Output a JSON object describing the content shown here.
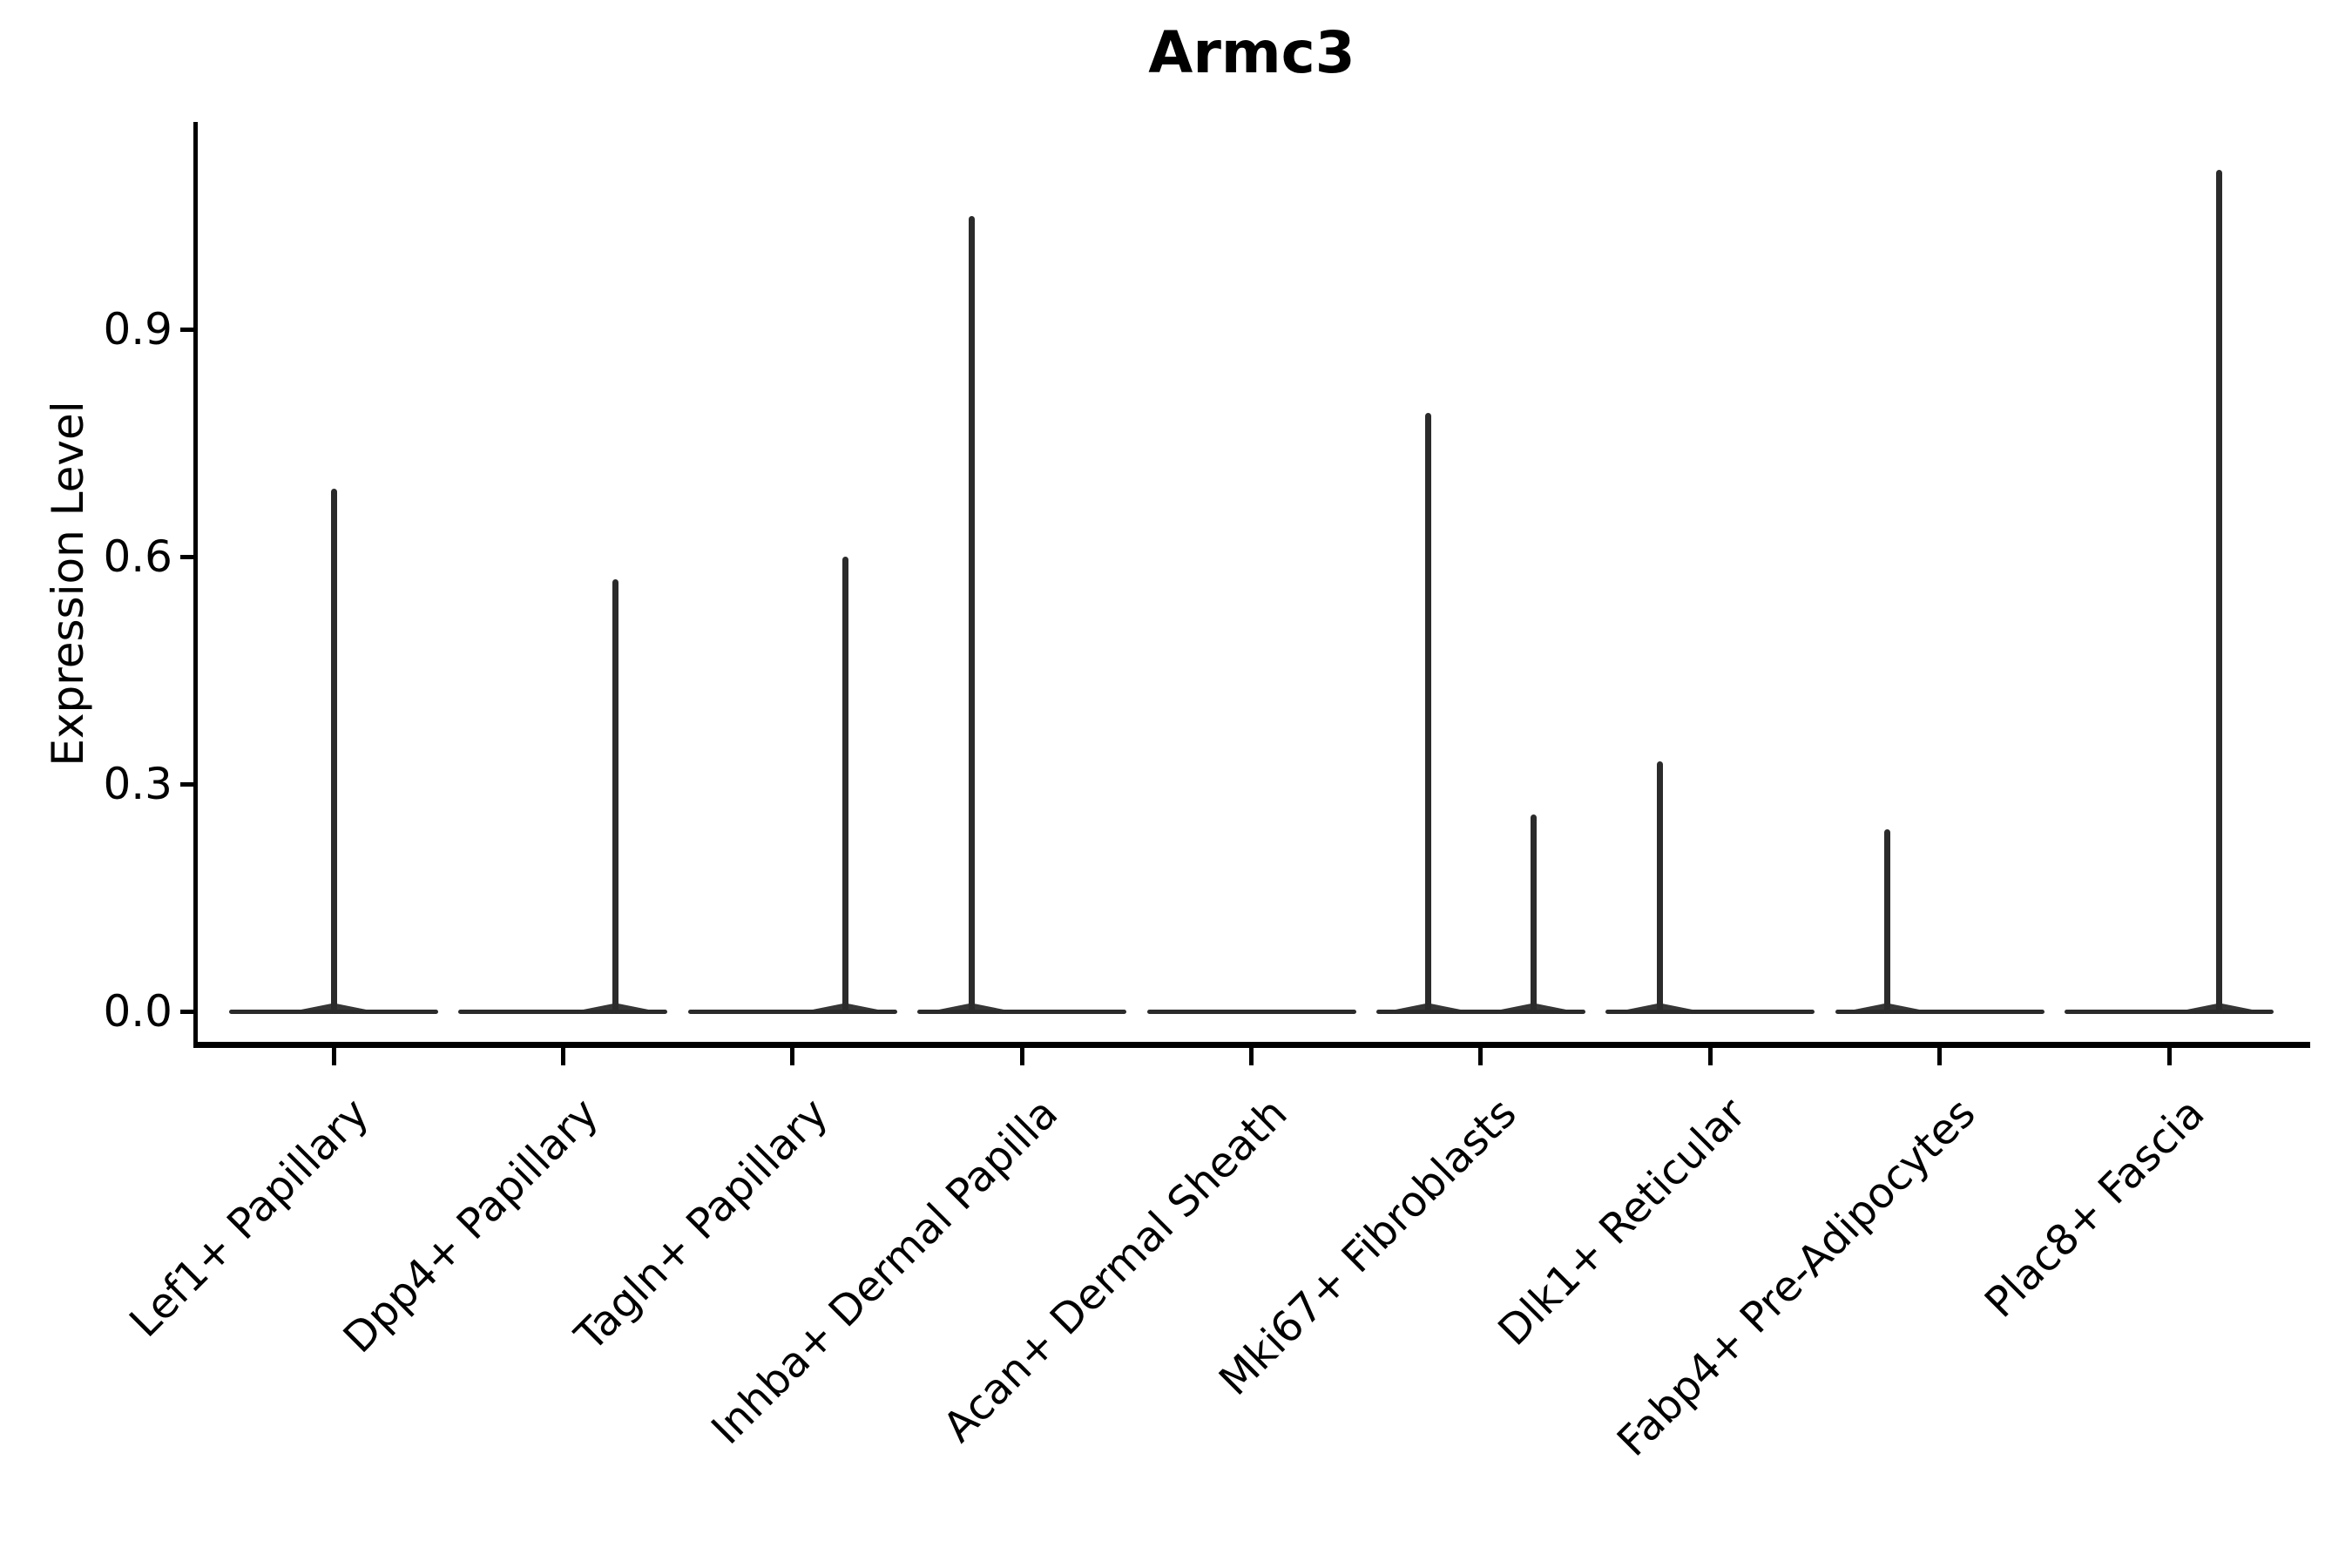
{
  "title": "Armc3",
  "y_axis": {
    "label": "Expression Level"
  },
  "colors": {
    "violin": "#2b2b2b",
    "axis": "#000000",
    "text": "#000000",
    "background": "#ffffff"
  },
  "chart_data": {
    "type": "violin",
    "title": "Armc3",
    "xlabel": "",
    "ylabel": "Expression Level",
    "grid": false,
    "legend": false,
    "ylim": [
      -0.05,
      1.17
    ],
    "yticks": [
      0.0,
      0.3,
      0.6,
      0.9
    ],
    "ytick_labels": [
      "0.0",
      "0.3",
      "0.6",
      "0.9"
    ],
    "categories": [
      "Lef1+ Papillary",
      "Dpp4+ Papillary",
      "Tagln+ Papillary",
      "Inhba+ Dermal Papilla",
      "Acan+ Dermal Sheath",
      "Mki67+ Fibroblasts",
      "Dlk1+ Reticular",
      "Fabp4+ Pre-Adipocytes",
      "Plac8+ Fascia"
    ],
    "series": [
      {
        "name": "Lef1+ Papillary",
        "max_expression": 0.69,
        "spikes": [
          {
            "x_offset_frac": 0.0,
            "value": 0.69
          }
        ]
      },
      {
        "name": "Dpp4+ Papillary",
        "max_expression": 0.57,
        "spikes": [
          {
            "x_offset_frac": 0.23,
            "value": 0.57
          }
        ]
      },
      {
        "name": "Tagln+ Papillary",
        "max_expression": 0.6,
        "spikes": [
          {
            "x_offset_frac": 0.23,
            "value": 0.6
          }
        ]
      },
      {
        "name": "Inhba+ Dermal Papilla",
        "max_expression": 1.05,
        "spikes": [
          {
            "x_offset_frac": -0.22,
            "value": 1.05
          }
        ]
      },
      {
        "name": "Acan+ Dermal Sheath",
        "max_expression": 0.0,
        "spikes": []
      },
      {
        "name": "Mki67+ Fibroblasts",
        "max_expression": 0.79,
        "spikes": [
          {
            "x_offset_frac": -0.23,
            "value": 0.79
          },
          {
            "x_offset_frac": 0.23,
            "value": 0.26
          }
        ]
      },
      {
        "name": "Dlk1+ Reticular",
        "max_expression": 0.33,
        "spikes": [
          {
            "x_offset_frac": -0.22,
            "value": 0.33
          }
        ]
      },
      {
        "name": "Fabp4+ Pre-Adipocytes",
        "max_expression": 0.24,
        "spikes": [
          {
            "x_offset_frac": -0.23,
            "value": 0.24
          }
        ]
      },
      {
        "name": "Plac8+ Fascia",
        "max_expression": 1.11,
        "spikes": [
          {
            "x_offset_frac": 0.22,
            "value": 1.11
          }
        ]
      }
    ]
  }
}
